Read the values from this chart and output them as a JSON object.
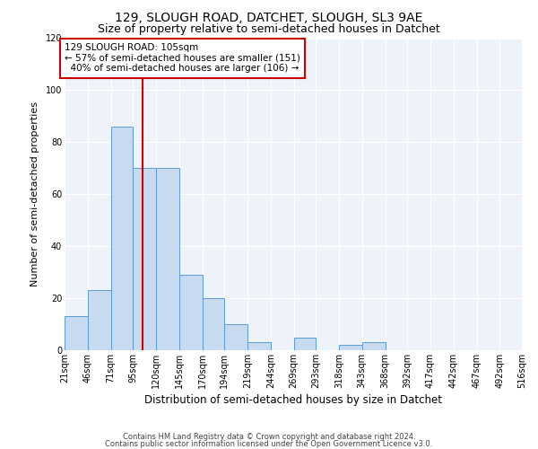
{
  "title": "129, SLOUGH ROAD, DATCHET, SLOUGH, SL3 9AE",
  "subtitle": "Size of property relative to semi-detached houses in Datchet",
  "xlabel": "Distribution of semi-detached houses by size in Datchet",
  "ylabel": "Number of semi-detached properties",
  "bin_labels": [
    "21sqm",
    "46sqm",
    "71sqm",
    "95sqm",
    "120sqm",
    "145sqm",
    "170sqm",
    "194sqm",
    "219sqm",
    "244sqm",
    "269sqm",
    "293sqm",
    "318sqm",
    "343sqm",
    "368sqm",
    "392sqm",
    "417sqm",
    "442sqm",
    "467sqm",
    "492sqm",
    "516sqm"
  ],
  "bin_edges": [
    21,
    46,
    71,
    95,
    120,
    145,
    170,
    194,
    219,
    244,
    269,
    293,
    318,
    343,
    368,
    392,
    417,
    442,
    467,
    492,
    516
  ],
  "bar_heights": [
    13,
    23,
    86,
    70,
    70,
    29,
    20,
    10,
    3,
    0,
    5,
    0,
    2,
    3,
    0,
    0,
    0,
    0,
    0,
    0
  ],
  "bar_color": "#c8daf0",
  "bar_edge_color": "#5b9bd5",
  "grid_color": "#d0d8e8",
  "vline_x": 105,
  "vline_color": "#cc0000",
  "annotation_title": "129 SLOUGH ROAD: 105sqm",
  "annotation_line1": "← 57% of semi-detached houses are smaller (151)",
  "annotation_line2": "  40% of semi-detached houses are larger (106) →",
  "annotation_box_color": "#ffffff",
  "annotation_box_edge": "#cc0000",
  "ylim": [
    0,
    120
  ],
  "yticks": [
    0,
    20,
    40,
    60,
    80,
    100,
    120
  ],
  "footer1": "Contains HM Land Registry data © Crown copyright and database right 2024.",
  "footer2": "Contains public sector information licensed under the Open Government Licence v3.0.",
  "title_fontsize": 10,
  "subtitle_fontsize": 9,
  "xlabel_fontsize": 8.5,
  "ylabel_fontsize": 8,
  "tick_fontsize": 7,
  "footer_fontsize": 6,
  "annotation_fontsize": 7.5
}
